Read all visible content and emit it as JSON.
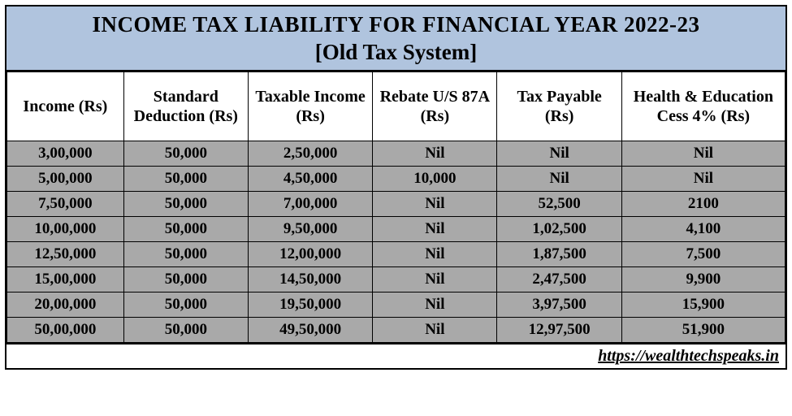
{
  "title": {
    "line1": "INCOME TAX LIABILITY FOR FINANCIAL YEAR 2022-23",
    "line2": "[Old Tax System]"
  },
  "colors": {
    "header_bg": "#b0c4de",
    "col_header_bg": "#ffffff",
    "row_bg": "#a9a9a9",
    "border": "#000000",
    "text": "#000000"
  },
  "columns": [
    "Income (Rs)",
    "Standard Deduction (Rs)",
    "Taxable Income (Rs)",
    "Rebate U/S 87A (Rs)",
    "Tax Payable (Rs)",
    "Health & Education Cess 4% (Rs)"
  ],
  "rows": [
    [
      "3,00,000",
      "50,000",
      "2,50,000",
      "Nil",
      "Nil",
      "Nil"
    ],
    [
      "5,00,000",
      "50,000",
      "4,50,000",
      "10,000",
      "Nil",
      "Nil"
    ],
    [
      "7,50,000",
      "50,000",
      "7,00,000",
      "Nil",
      "52,500",
      "2100"
    ],
    [
      "10,00,000",
      "50,000",
      "9,50,000",
      "Nil",
      "1,02,500",
      "4,100"
    ],
    [
      "12,50,000",
      "50,000",
      "12,00,000",
      "Nil",
      "1,87,500",
      "7,500"
    ],
    [
      "15,00,000",
      "50,000",
      "14,50,000",
      "Nil",
      "2,47,500",
      "9,900"
    ],
    [
      "20,00,000",
      "50,000",
      "19,50,000",
      "Nil",
      "3,97,500",
      "15,900"
    ],
    [
      "50,00,000",
      "50,000",
      "49,50,000",
      "Nil",
      "12,97,500",
      "51,900"
    ]
  ],
  "footer_url": "https://wealthtechspeaks.in",
  "col_widths_pct": [
    15,
    16,
    16,
    16,
    16,
    21
  ]
}
